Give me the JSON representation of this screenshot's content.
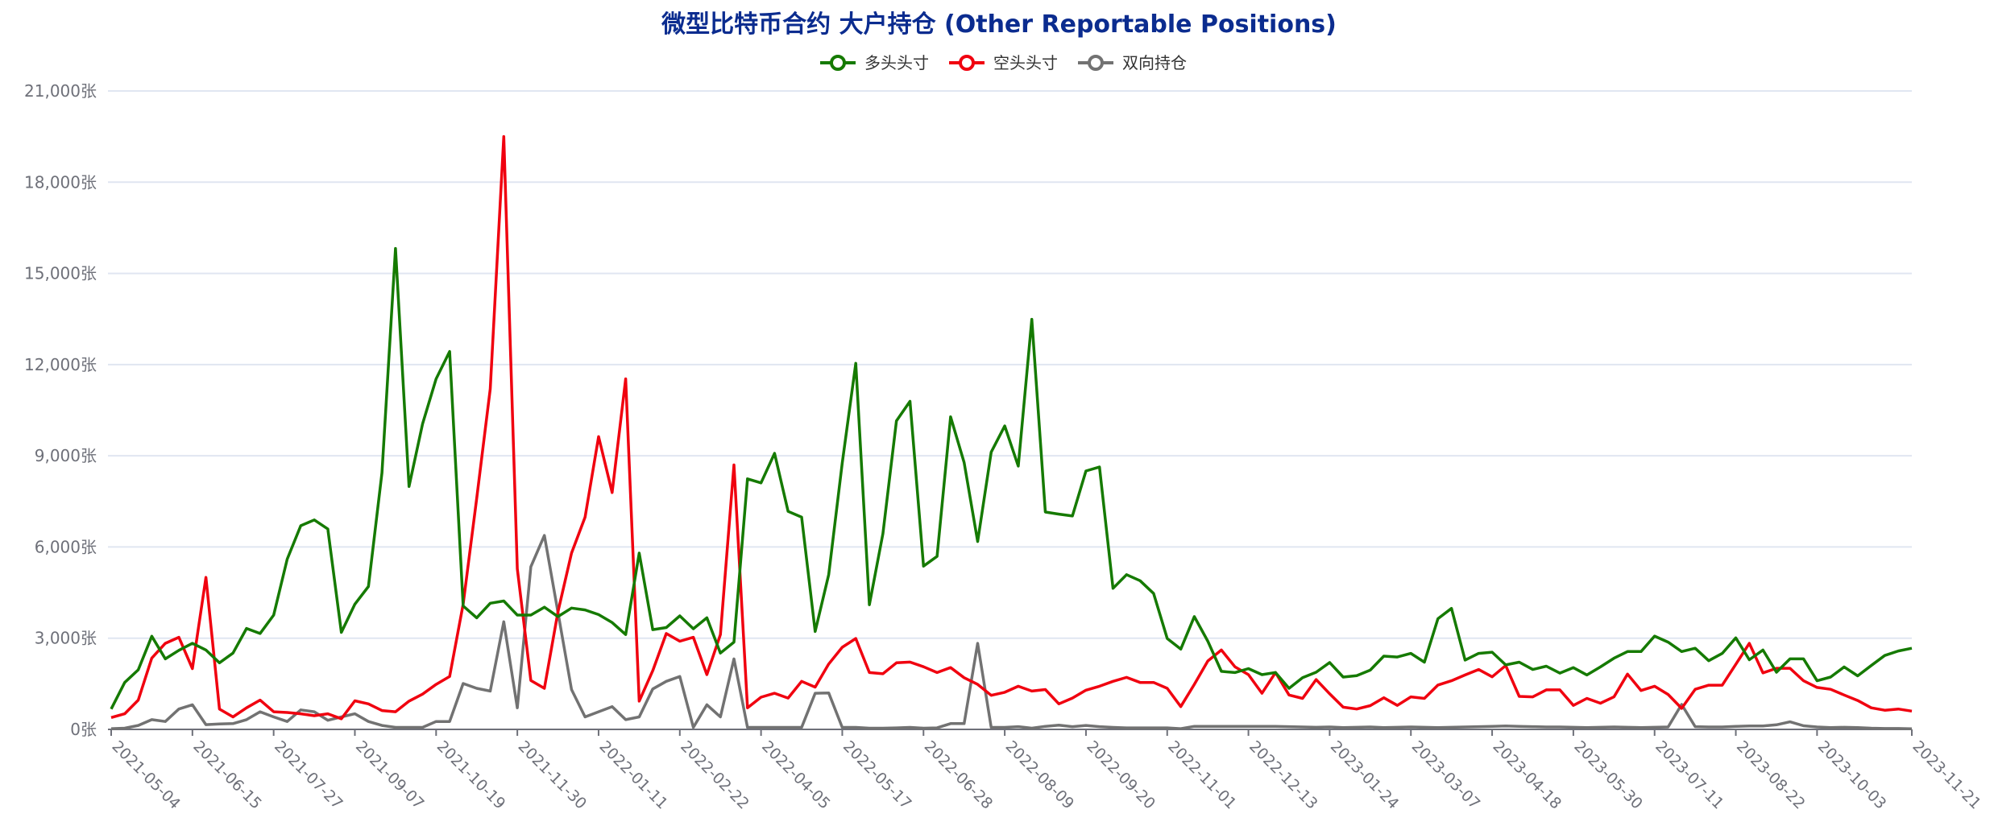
{
  "chart_data": {
    "type": "line",
    "title": "微型比特币合约 大户持仓 (Other Reportable Positions)",
    "title_color": "#0b2c8f",
    "xlabel": "",
    "ylabel": "",
    "y_unit_suffix": "张",
    "ylim": [
      0,
      21000
    ],
    "yticks": [
      0,
      3000,
      6000,
      9000,
      12000,
      15000,
      18000,
      21000
    ],
    "ytick_labels": [
      "0张",
      "3,000张",
      "6,000张",
      "9,000张",
      "12,000张",
      "15,000张",
      "18,000张",
      "21,000张"
    ],
    "grid": true,
    "legend_position": "top-center",
    "x_start": "2021-05-04",
    "x_interval": "weekly",
    "xtick_labels": [
      "2021-05-04",
      "2021-06-15",
      "2021-07-27",
      "2021-09-07",
      "2021-10-19",
      "2021-11-30",
      "2022-01-11",
      "2022-02-22",
      "2022-04-05",
      "2022-05-17",
      "2022-06-28",
      "2022-08-09",
      "2022-09-20",
      "2022-11-01",
      "2022-12-13",
      "2023-01-24",
      "2023-03-07",
      "2023-04-18",
      "2023-05-30",
      "2023-07-11",
      "2023-08-22",
      "2023-10-03",
      "2023-11-21"
    ],
    "xtick_indices": [
      0,
      6,
      12,
      18,
      24,
      30,
      36,
      42,
      48,
      54,
      60,
      66,
      72,
      78,
      84,
      90,
      96,
      102,
      108,
      114,
      120,
      126,
      133
    ],
    "series": [
      {
        "name": "多头头寸",
        "color": "#157a00",
        "values": [
          670,
          1545,
          1960,
          3065,
          2320,
          2600,
          2830,
          2610,
          2190,
          2510,
          3320,
          3155,
          3760,
          5600,
          6700,
          6890,
          6590,
          3190,
          4120,
          4700,
          8440,
          15820,
          7990,
          10050,
          11530,
          12430,
          4060,
          3670,
          4150,
          4225,
          3760,
          3760,
          4020,
          3710,
          3990,
          3930,
          3775,
          3515,
          3120,
          5800,
          3280,
          3350,
          3735,
          3310,
          3670,
          2510,
          2870,
          8240,
          8110,
          9080,
          7170,
          6980,
          3220,
          5090,
          8760,
          12040,
          4100,
          6440,
          10150,
          10790,
          5370,
          5690,
          10280,
          8780,
          6180,
          9120,
          9980,
          8660,
          13490,
          7150,
          7080,
          7020,
          8500,
          8630,
          4640,
          5090,
          4890,
          4470,
          2990,
          2640,
          3710,
          2900,
          1910,
          1870,
          2000,
          1800,
          1870,
          1350,
          1700,
          1880,
          2200,
          1720,
          1770,
          1950,
          2410,
          2380,
          2500,
          2210,
          3640,
          3980,
          2280,
          2500,
          2540,
          2120,
          2210,
          1970,
          2080,
          1850,
          2030,
          1790,
          2055,
          2340,
          2560,
          2560,
          3070,
          2870,
          2560,
          2670,
          2260,
          2500,
          3010,
          2290,
          2610,
          1880,
          2320,
          2320,
          1600,
          1720,
          2055,
          1760,
          2100,
          2430,
          2580,
          2670
        ]
      },
      {
        "name": "空头头寸",
        "color": "#f0000f",
        "values": [
          390,
          515,
          965,
          2345,
          2830,
          3030,
          2000,
          5000,
          670,
          410,
          710,
          965,
          580,
          555,
          515,
          450,
          515,
          350,
          940,
          840,
          620,
          580,
          930,
          1160,
          1480,
          1740,
          4120,
          7600,
          11200,
          19500,
          5280,
          1610,
          1350,
          3860,
          5800,
          6980,
          9630,
          7790,
          11530,
          930,
          1930,
          3155,
          2900,
          3030,
          1800,
          3120,
          8700,
          710,
          1060,
          1190,
          1030,
          1580,
          1390,
          2150,
          2700,
          2990,
          1870,
          1830,
          2190,
          2215,
          2060,
          1870,
          2035,
          1700,
          1480,
          1120,
          1220,
          1420,
          1260,
          1310,
          840,
          1030,
          1290,
          1420,
          1580,
          1710,
          1545,
          1545,
          1350,
          750,
          1480,
          2250,
          2610,
          2060,
          1800,
          1190,
          1870,
          1130,
          1020,
          1640,
          1170,
          730,
          670,
          780,
          1040,
          790,
          1070,
          1020,
          1460,
          1600,
          1790,
          1970,
          1730,
          2100,
          1085,
          1070,
          1300,
          1300,
          790,
          1020,
          860,
          1070,
          1820,
          1280,
          1420,
          1150,
          690,
          1320,
          1455,
          1455,
          2140,
          2830,
          1860,
          2010,
          2010,
          1600,
          1380,
          1320,
          1130,
          950,
          710,
          630,
          670,
          600
        ]
      },
      {
        "name": "双向持仓",
        "color": "#727272",
        "values": [
          25,
          40,
          130,
          320,
          260,
          670,
          810,
          155,
          180,
          190,
          320,
          580,
          410,
          260,
          640,
          580,
          300,
          410,
          515,
          260,
          130,
          65,
          65,
          65,
          260,
          260,
          1510,
          1350,
          1260,
          3540,
          710,
          5350,
          6380,
          3860,
          1310,
          410,
          580,
          750,
          320,
          410,
          1330,
          1580,
          1740,
          65,
          810,
          410,
          2320,
          65,
          65,
          65,
          65,
          65,
          1190,
          1200,
          65,
          65,
          40,
          40,
          50,
          65,
          40,
          50,
          190,
          190,
          2830,
          65,
          65,
          90,
          40,
          100,
          140,
          90,
          130,
          90,
          65,
          50,
          50,
          50,
          50,
          25,
          100,
          100,
          100,
          100,
          100,
          100,
          100,
          90,
          80,
          70,
          80,
          60,
          70,
          80,
          60,
          70,
          80,
          70,
          60,
          70,
          80,
          90,
          100,
          110,
          100,
          90,
          80,
          80,
          70,
          60,
          70,
          80,
          70,
          60,
          70,
          80,
          820,
          90,
          80,
          80,
          100,
          110,
          110,
          150,
          250,
          120,
          80,
          60,
          70,
          60,
          40,
          30,
          30,
          20
        ]
      }
    ]
  }
}
